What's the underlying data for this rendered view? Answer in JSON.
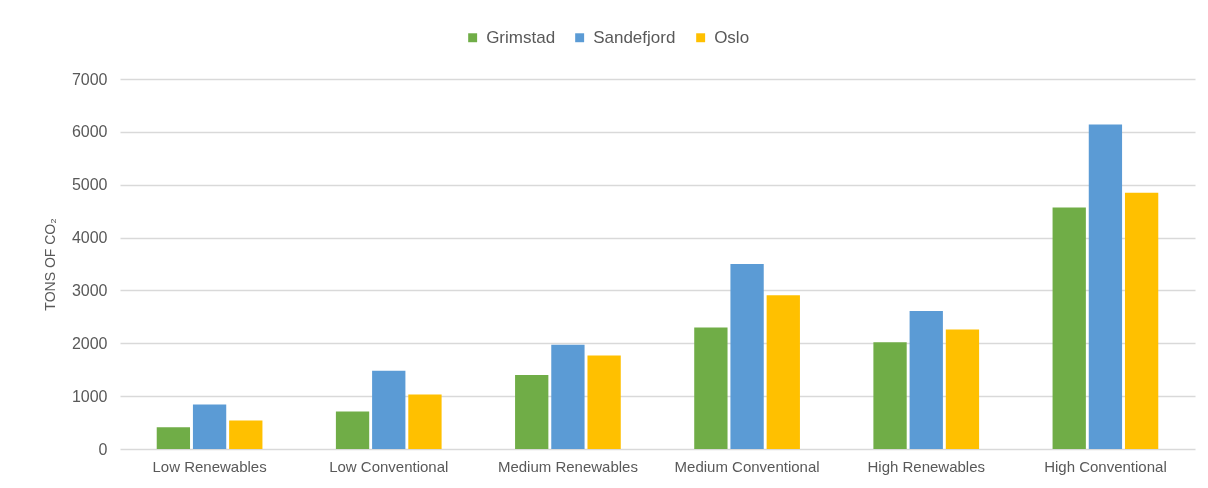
{
  "chart_data": {
    "type": "bar",
    "ylabel": "TONS OF CO₂",
    "categories": [
      "Low Renewables",
      "Low Conventional",
      "Medium Renewables",
      "Medium Conventional",
      "High Renewables",
      "High Conventional"
    ],
    "series": [
      {
        "name": "Grimstad",
        "color": "#70ad47",
        "values": [
          410,
          710,
          1400,
          2300,
          2020,
          4570
        ]
      },
      {
        "name": "Sandefjord",
        "color": "#5b9bd5",
        "values": [
          840,
          1480,
          1970,
          3500,
          2610,
          6140
        ]
      },
      {
        "name": "Oslo",
        "color": "#ffc000",
        "values": [
          540,
          1030,
          1770,
          2910,
          2260,
          4850
        ]
      }
    ],
    "ylim": [
      0,
      7000
    ],
    "yticks": [
      0,
      1000,
      2000,
      3000,
      4000,
      5000,
      6000,
      7000
    ],
    "grid": "y",
    "legend": "top"
  }
}
